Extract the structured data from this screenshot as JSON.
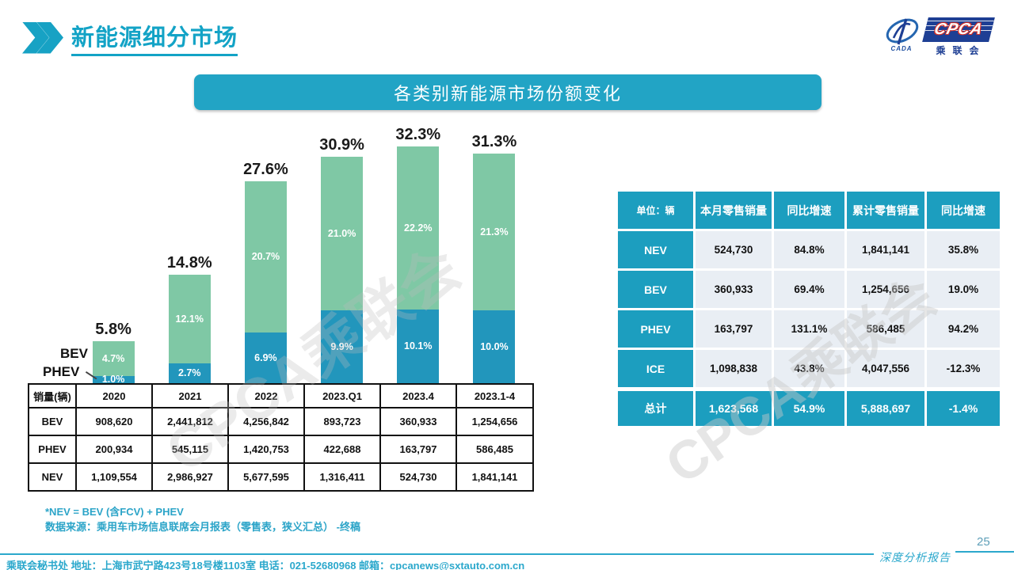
{
  "header": {
    "title": "新能源细分市场"
  },
  "logo": {
    "acronym": "CPCA",
    "subtitle": "乘联会",
    "left_caption": "CADA"
  },
  "banner": {
    "title": "各类别新能源市场份额变化"
  },
  "legend": {
    "bev": "BEV",
    "phev": "PHEV"
  },
  "watermark": {
    "text": "CPCA乘联会"
  },
  "chart_data": {
    "type": "bar",
    "stacked": true,
    "title": "各类别新能源市场份额变化",
    "unit": "%",
    "categories": [
      "2020",
      "2021",
      "2022",
      "2023.Q1",
      "2023.4",
      "2023.1-4"
    ],
    "series": [
      {
        "name": "PHEV",
        "color": "#2296BC",
        "values": [
          1.0,
          2.7,
          6.9,
          9.9,
          10.1,
          10.0
        ]
      },
      {
        "name": "BEV",
        "color": "#7FC8A5",
        "values": [
          4.7,
          12.1,
          20.7,
          21.0,
          22.2,
          21.3
        ]
      }
    ],
    "totals": [
      5.8,
      14.8,
      27.6,
      30.9,
      32.3,
      31.3
    ],
    "ylim": [
      0,
      33
    ],
    "gridlines": false,
    "legend_position": "left"
  },
  "sales_table": {
    "header": [
      "销量(辆)",
      "2020",
      "2021",
      "2022",
      "2023.Q1",
      "2023.4",
      "2023.1-4"
    ],
    "rows": [
      {
        "label": "BEV",
        "values": [
          "908,620",
          "2,441,812",
          "4,256,842",
          "893,723",
          "360,933",
          "1,254,656"
        ]
      },
      {
        "label": "PHEV",
        "values": [
          "200,934",
          "545,115",
          "1,420,753",
          "422,688",
          "163,797",
          "586,485"
        ]
      },
      {
        "label": "NEV",
        "values": [
          "1,109,554",
          "2,986,927",
          "5,677,595",
          "1,316,411",
          "524,730",
          "1,841,141"
        ]
      }
    ]
  },
  "summary_table": {
    "header": [
      "单位：辆",
      "本月零售销量",
      "同比增速",
      "累计零售销量",
      "同比增速"
    ],
    "rows": [
      {
        "label": "NEV",
        "values": [
          "524,730",
          "84.8%",
          "1,841,141",
          "35.8%"
        ]
      },
      {
        "label": "BEV",
        "values": [
          "360,933",
          "69.4%",
          "1,254,656",
          "19.0%"
        ]
      },
      {
        "label": "PHEV",
        "values": [
          "163,797",
          "131.1%",
          "586,485",
          "94.2%"
        ]
      },
      {
        "label": "ICE",
        "values": [
          "1,098,838",
          "43.8%",
          "4,047,556",
          "-12.3%"
        ]
      }
    ],
    "total_row": {
      "label": "总计",
      "values": [
        "1,623,568",
        "54.9%",
        "5,888,697",
        "-1.4%"
      ]
    }
  },
  "notes": [
    "*NEV = BEV (含FCV) + PHEV",
    "数据来源：乘用车市场信息联席会月报表（零售表，狭义汇总） -终稿"
  ],
  "footer": {
    "secretariat": "乘联会秘书处   地址：上海市武宁路423号18号楼1103室 电话：021-52680968   邮箱：cpcanews@sxtauto.com.cn",
    "report_label": "深度分析报告",
    "page_number": "25"
  },
  "colors": {
    "teal": "#1C9EBF",
    "banner_teal": "#22A4C5",
    "bar_blue": "#2296BC",
    "bar_green": "#7FC8A5",
    "logo_navy": "#1E3F94",
    "logo_red": "#D93025",
    "cell_bg": "#E9EEF4"
  }
}
